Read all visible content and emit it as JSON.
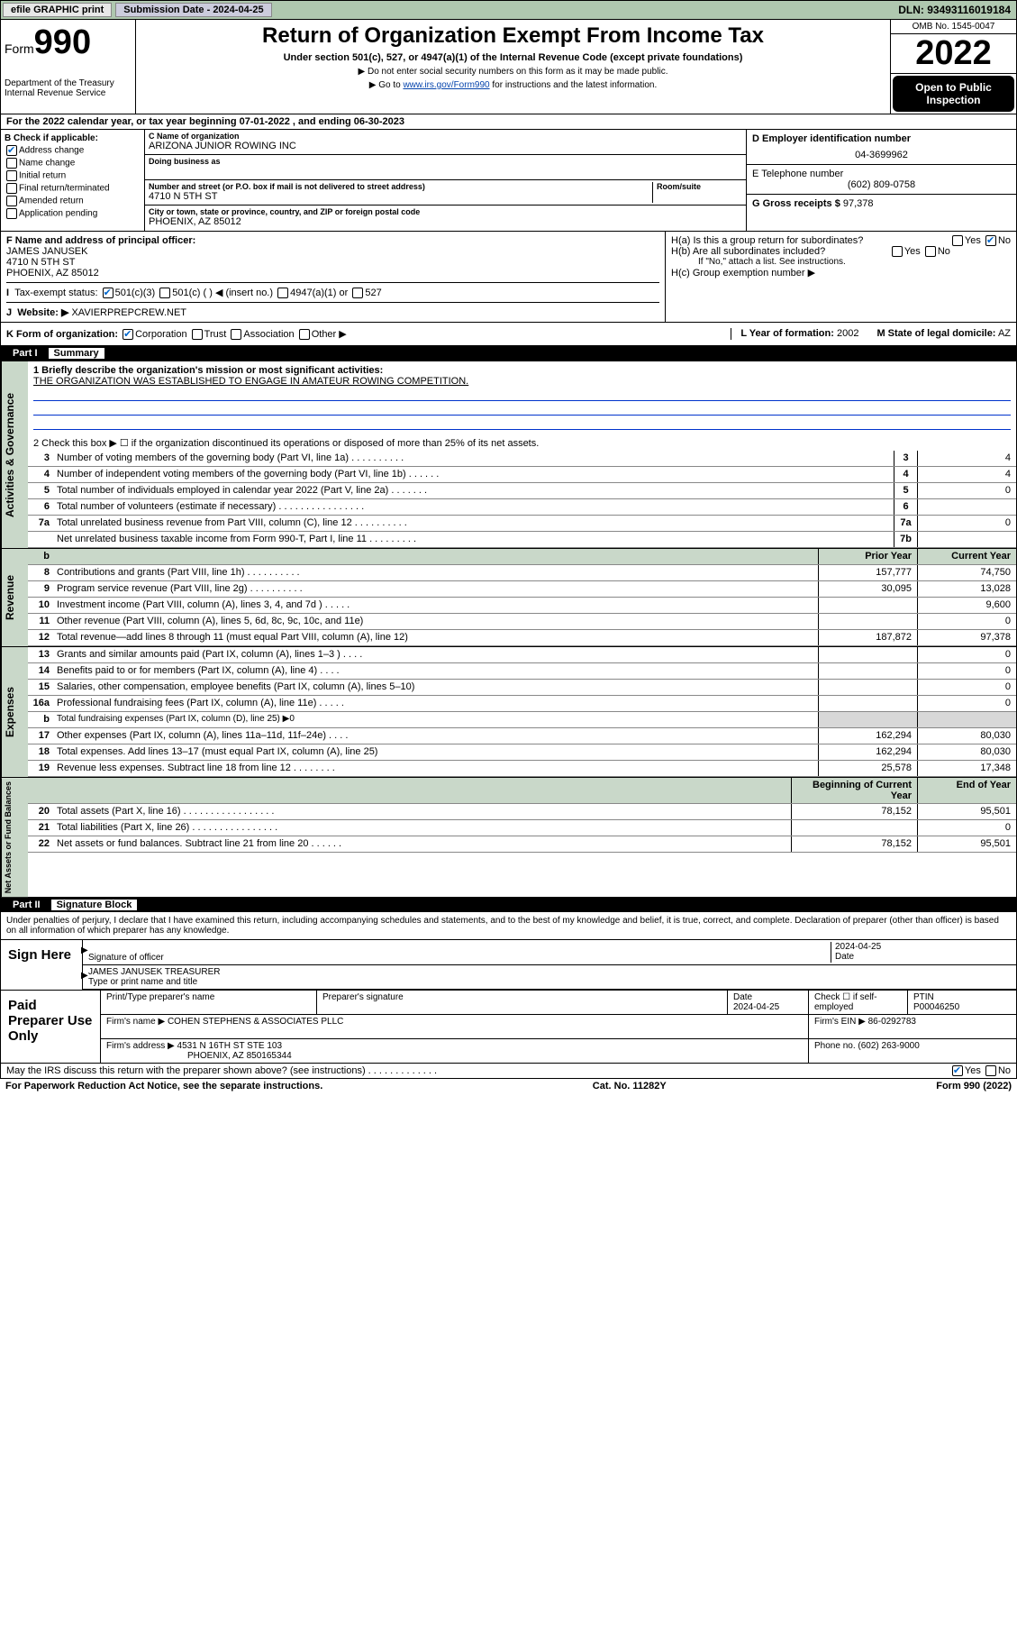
{
  "meta": {
    "efile_label": "efile GRAPHIC print",
    "submission_label": "Submission Date - 2024-04-25",
    "dln": "DLN: 93493116019184",
    "omb": "OMB No. 1545-0047",
    "form_label": "Form",
    "form_num": "990",
    "title": "Return of Organization Exempt From Income Tax",
    "subtitle": "Under section 501(c), 527, or 4947(a)(1) of the Internal Revenue Code (except private foundations)",
    "hint1": "▶ Do not enter social security numbers on this form as it may be made public.",
    "hint2_pre": "▶ Go to ",
    "hint2_link": "www.irs.gov/Form990",
    "hint2_post": " for instructions and the latest information.",
    "year": "2022",
    "open": "Open to Public Inspection",
    "dept": "Department of the Treasury",
    "irs": "Internal Revenue Service"
  },
  "period": "For the 2022 calendar year, or tax year beginning 07-01-2022  , and ending 06-30-2023",
  "boxB": {
    "label": "B Check if applicable:",
    "items": [
      "Address change",
      "Name change",
      "Initial return",
      "Final return/terminated",
      "Amended return",
      "Application pending"
    ],
    "checked": [
      true,
      false,
      false,
      false,
      false,
      false
    ]
  },
  "boxC": {
    "name_label": "C Name of organization",
    "name": "ARIZONA JUNIOR ROWING INC",
    "dba_label": "Doing business as",
    "street_label": "Number and street (or P.O. box if mail is not delivered to street address)",
    "room_label": "Room/suite",
    "street": "4710 N 5TH ST",
    "city_label": "City or town, state or province, country, and ZIP or foreign postal code",
    "city": "PHOENIX, AZ  85012"
  },
  "boxD": {
    "label": "D Employer identification number",
    "value": "04-3699962"
  },
  "boxE": {
    "label": "E Telephone number",
    "value": "(602) 809-0758"
  },
  "boxG": {
    "label": "G Gross receipts $",
    "value": "97,378"
  },
  "boxF": {
    "label": "F  Name and address of principal officer:",
    "name": "JAMES JANUSEK",
    "street": "4710 N 5TH ST",
    "city": "PHOENIX, AZ  85012"
  },
  "boxH": {
    "a": "H(a)  Is this a group return for subordinates?",
    "b": "H(b)  Are all subordinates included?",
    "bnote": "If \"No,\" attach a list. See instructions.",
    "c": "H(c)  Group exemption number ▶"
  },
  "boxI": "Tax-exempt status:",
  "boxI_opts": [
    "501(c)(3)",
    "501(c) (  ) ◀ (insert no.)",
    "4947(a)(1) or",
    "527"
  ],
  "boxJ": {
    "label": "Website: ▶",
    "value": "XAVIERPREPCREW.NET"
  },
  "boxK": "K Form of organization:",
  "boxK_opts": [
    "Corporation",
    "Trust",
    "Association",
    "Other ▶"
  ],
  "boxL": {
    "label": "L Year of formation:",
    "value": "2002"
  },
  "boxM": {
    "label": "M State of legal domicile:",
    "value": "AZ"
  },
  "part1": {
    "hdr": "Part I",
    "title": "Summary",
    "line1_label": "1  Briefly describe the organization's mission or most significant activities:",
    "line1_text": "THE ORGANIZATION WAS ESTABLISHED TO ENGAGE IN AMATEUR ROWING COMPETITION.",
    "line2": "2  Check this box ▶ ☐  if the organization discontinued its operations or disposed of more than 25% of its net assets.",
    "sections": [
      {
        "label": "Activities & Governance",
        "rows": [
          {
            "n": "3",
            "t": "Number of voting members of the governing body (Part VI, line 1a)  .  .  .  .  .  .  .  .  .  .",
            "box": "3",
            "v2": "4"
          },
          {
            "n": "4",
            "t": "Number of independent voting members of the governing body (Part VI, line 1b)  .  .  .  .  .  .",
            "box": "4",
            "v2": "4"
          },
          {
            "n": "5",
            "t": "Total number of individuals employed in calendar year 2022 (Part V, line 2a)  .  .  .  .  .  .  .",
            "box": "5",
            "v2": "0"
          },
          {
            "n": "6",
            "t": "Total number of volunteers (estimate if necessary)  .  .  .  .  .  .  .  .  .  .  .  .  .  .  .  .",
            "box": "6",
            "v2": ""
          },
          {
            "n": "7a",
            "t": "Total unrelated business revenue from Part VIII, column (C), line 12  .  .  .  .  .  .  .  .  .  .",
            "box": "7a",
            "v2": "0"
          },
          {
            "n": "",
            "t": "Net unrelated business taxable income from Form 990-T, Part I, line 11  .  .  .  .  .  .  .  .  .",
            "box": "7b",
            "v2": ""
          }
        ]
      }
    ],
    "colhdr_prior": "Prior Year",
    "colhdr_curr": "Current Year",
    "revenue_label": "Revenue",
    "revenue": [
      {
        "n": "8",
        "t": "Contributions and grants (Part VIII, line 1h)  .  .  .  .  .  .  .  .  .  .",
        "v1": "157,777",
        "v2": "74,750"
      },
      {
        "n": "9",
        "t": "Program service revenue (Part VIII, line 2g)  .  .  .  .  .  .  .  .  .  .",
        "v1": "30,095",
        "v2": "13,028"
      },
      {
        "n": "10",
        "t": "Investment income (Part VIII, column (A), lines 3, 4, and 7d )  .  .  .  .  .",
        "v1": "",
        "v2": "9,600"
      },
      {
        "n": "11",
        "t": "Other revenue (Part VIII, column (A), lines 5, 6d, 8c, 9c, 10c, and 11e)",
        "v1": "",
        "v2": "0"
      },
      {
        "n": "12",
        "t": "Total revenue—add lines 8 through 11 (must equal Part VIII, column (A), line 12)",
        "v1": "187,872",
        "v2": "97,378"
      }
    ],
    "expenses_label": "Expenses",
    "expenses": [
      {
        "n": "13",
        "t": "Grants and similar amounts paid (Part IX, column (A), lines 1–3 )  .  .  .  .",
        "v1": "",
        "v2": "0"
      },
      {
        "n": "14",
        "t": "Benefits paid to or for members (Part IX, column (A), line 4)  .  .  .  .",
        "v1": "",
        "v2": "0"
      },
      {
        "n": "15",
        "t": "Salaries, other compensation, employee benefits (Part IX, column (A), lines 5–10)",
        "v1": "",
        "v2": "0"
      },
      {
        "n": "16a",
        "t": "Professional fundraising fees (Part IX, column (A), line 11e)  .  .  .  .  .",
        "v1": "",
        "v2": "0"
      },
      {
        "n": "b",
        "t": "Total fundraising expenses (Part IX, column (D), line 25) ▶0",
        "shade": true
      },
      {
        "n": "17",
        "t": "Other expenses (Part IX, column (A), lines 11a–11d, 11f–24e)  .  .  .  .",
        "v1": "162,294",
        "v2": "80,030"
      },
      {
        "n": "18",
        "t": "Total expenses. Add lines 13–17 (must equal Part IX, column (A), line 25)",
        "v1": "162,294",
        "v2": "80,030"
      },
      {
        "n": "19",
        "t": "Revenue less expenses. Subtract line 18 from line 12  .  .  .  .  .  .  .  .",
        "v1": "25,578",
        "v2": "17,348"
      }
    ],
    "netassets_label": "Net Assets or Fund Balances",
    "na_hdr1": "Beginning of Current Year",
    "na_hdr2": "End of Year",
    "netassets": [
      {
        "n": "20",
        "t": "Total assets (Part X, line 16)  .  .  .  .  .  .  .  .  .  .  .  .  .  .  .  .  .",
        "v1": "78,152",
        "v2": "95,501"
      },
      {
        "n": "21",
        "t": "Total liabilities (Part X, line 26)  .  .  .  .  .  .  .  .  .  .  .  .  .  .  .  .",
        "v1": "",
        "v2": "0"
      },
      {
        "n": "22",
        "t": "Net assets or fund balances. Subtract line 21 from line 20  .  .  .  .  .  .",
        "v1": "78,152",
        "v2": "95,501"
      }
    ]
  },
  "part2": {
    "hdr": "Part II",
    "title": "Signature Block",
    "decl": "Under penalties of perjury, I declare that I have examined this return, including accompanying schedules and statements, and to the best of my knowledge and belief, it is true, correct, and complete. Declaration of preparer (other than officer) is based on all information of which preparer has any knowledge.",
    "sign_here": "Sign Here",
    "sig_officer": "Signature of officer",
    "sig_date_lbl": "Date",
    "sig_date": "2024-04-25",
    "name_title": "JAMES JANUSEK TREASURER",
    "name_title_lbl": "Type or print name and title",
    "paid": "Paid Preparer Use Only",
    "prep_name_lbl": "Print/Type preparer's name",
    "prep_sig_lbl": "Preparer's signature",
    "date_lbl": "Date",
    "date_val": "2024-04-25",
    "check_lbl": "Check ☐ if self-employed",
    "ptin_lbl": "PTIN",
    "ptin": "P00046250",
    "firm_name_lbl": "Firm's name    ▶",
    "firm_name": "COHEN STEPHENS & ASSOCIATES PLLC",
    "firm_ein_lbl": "Firm's EIN ▶",
    "firm_ein": "86-0292783",
    "firm_addr_lbl": "Firm's address ▶",
    "firm_addr1": "4531 N 16TH ST STE 103",
    "firm_addr2": "PHOENIX, AZ  850165344",
    "phone_lbl": "Phone no.",
    "phone": "(602) 263-9000",
    "discuss": "May the IRS discuss this return with the preparer shown above? (see instructions)  .  .  .  .  .  .  .  .  .  .  .  .  .",
    "paperwork": "For Paperwork Reduction Act Notice, see the separate instructions.",
    "cat": "Cat. No. 11282Y",
    "formno": "Form 990 (2022)"
  }
}
